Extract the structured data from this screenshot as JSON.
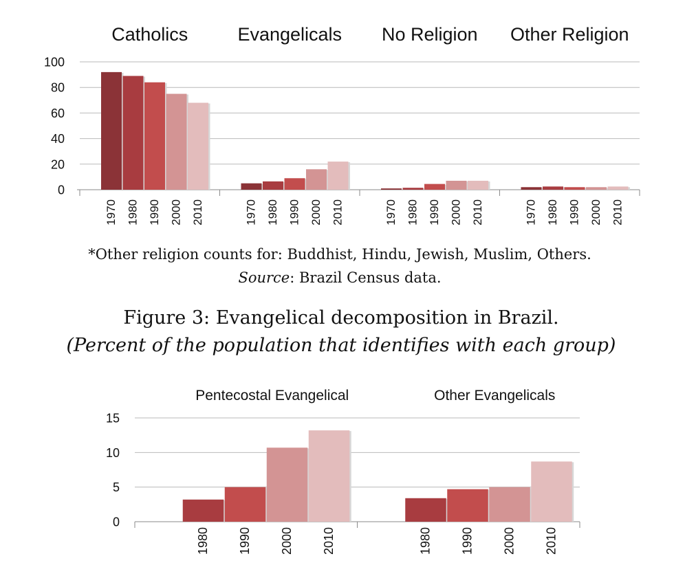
{
  "colors": {
    "1970": "#8b3337",
    "1980": "#a83c40",
    "1990": "#c24d4d",
    "2000": "#d39494",
    "2010": "#e3bcbc"
  },
  "chart_data": [
    {
      "type": "bar",
      "title": "",
      "xlabel": "",
      "ylabel": "",
      "ylim": [
        0,
        100
      ],
      "yticks": [
        0,
        20,
        40,
        60,
        80,
        100
      ],
      "grid": true,
      "groups": [
        {
          "name": "Catholics",
          "categories": [
            "1970",
            "1980",
            "1990",
            "2000",
            "2010"
          ],
          "values": [
            92,
            89,
            84,
            75,
            68
          ]
        },
        {
          "name": "Evangelicals",
          "categories": [
            "1970",
            "1980",
            "1990",
            "2000",
            "2010"
          ],
          "values": [
            5,
            6.5,
            9,
            16,
            22
          ]
        },
        {
          "name": "No Religion",
          "categories": [
            "1970",
            "1980",
            "1990",
            "2000",
            "2010"
          ],
          "values": [
            1,
            1.5,
            4.5,
            7,
            7
          ]
        },
        {
          "name": "Other Religion",
          "categories": [
            "1970",
            "1980",
            "1990",
            "2000",
            "2010"
          ],
          "values": [
            2,
            2.5,
            2,
            2,
            2.5
          ]
        }
      ]
    },
    {
      "type": "bar",
      "title": "",
      "xlabel": "",
      "ylabel": "",
      "ylim": [
        0,
        15
      ],
      "yticks": [
        0,
        5,
        10,
        15
      ],
      "grid": true,
      "groups": [
        {
          "name": "Pentecostal Evangelical",
          "categories": [
            "1980",
            "1990",
            "2000",
            "2010"
          ],
          "values": [
            3.2,
            5,
            10.7,
            13.2
          ]
        },
        {
          "name": "Other Evangelicals",
          "categories": [
            "1980",
            "1990",
            "2000",
            "2010"
          ],
          "values": [
            3.4,
            4.7,
            5,
            8.7
          ]
        }
      ]
    }
  ],
  "notes": {
    "line1": "*Other religion counts for: Buddhist, Hindu, Jewish, Muslim, Others.",
    "source_label": "Source",
    "source_rest": ": Brazil Census data."
  },
  "figure3": {
    "caption": "Figure 3: Evangelical decomposition in Brazil.",
    "subcaption": "(Percent of the population that identifies with each group)"
  }
}
